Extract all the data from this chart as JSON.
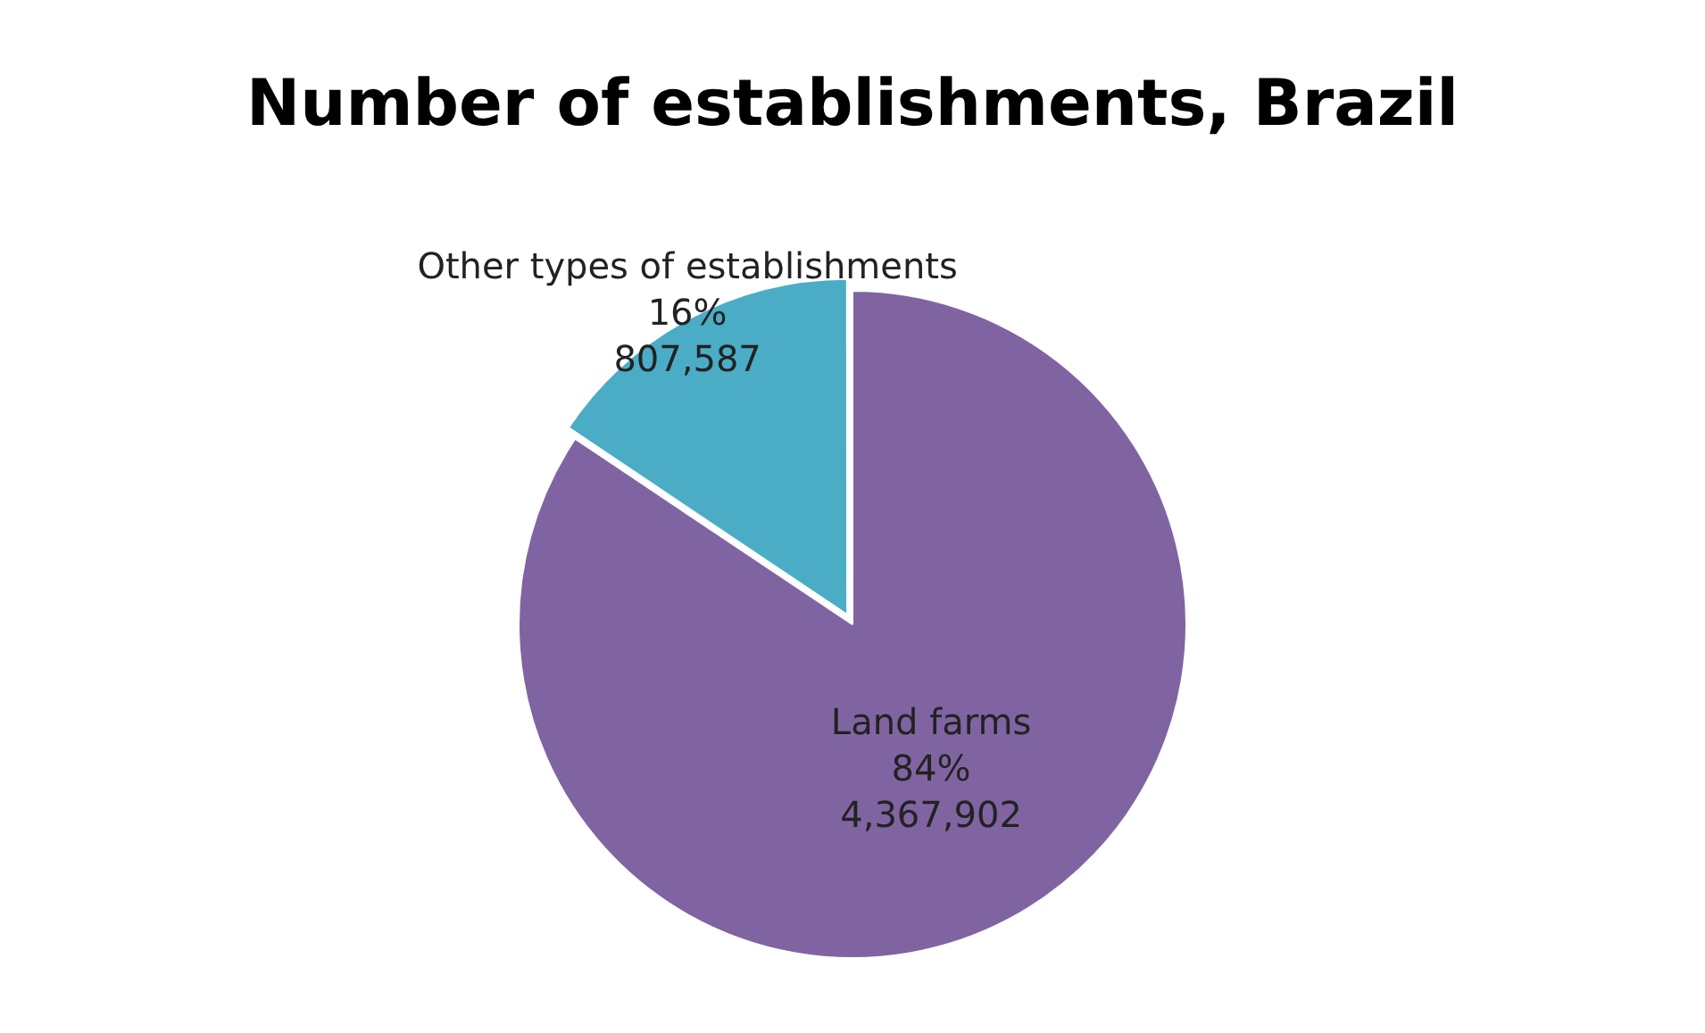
{
  "chart_data": {
    "type": "pie",
    "title": "Number of establishments, Brazil",
    "categories": [
      "Land farms",
      "Other types of establishments"
    ],
    "values": [
      4367902,
      807587
    ],
    "colors": [
      "#8064a2",
      "#4bacc6"
    ],
    "value_labels": [
      "84%\n4,367,902",
      "16%\n807,587"
    ],
    "legend": false
  }
}
